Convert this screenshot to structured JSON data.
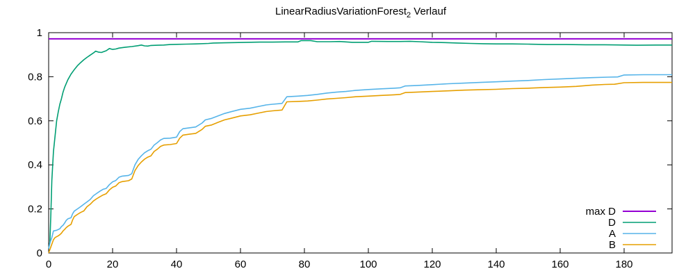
{
  "page": {
    "background": "#ffffff"
  },
  "title": {
    "main": "LinearRadiusVariationForest",
    "sub": "2",
    "suffix": " Verlauf",
    "full": "LinearRadiusVariationForest₂ Verlauf"
  },
  "chart_data": {
    "type": "line",
    "title": "LinearRadiusVariationForest₂ Verlauf",
    "xlabel": "",
    "ylabel": "",
    "xlim": [
      0,
      195
    ],
    "ylim": [
      0,
      1
    ],
    "grid": false,
    "legend_position": "bottom-right",
    "axis_color": "#000000",
    "text_color": "#000000",
    "xticks": {
      "values": [
        0,
        20,
        40,
        60,
        80,
        100,
        120,
        140,
        160,
        180
      ],
      "labels": [
        "0",
        "20",
        "40",
        "60",
        "80",
        "100",
        "120",
        "140",
        "160",
        "180"
      ]
    },
    "yticks": {
      "values": [
        0,
        0.2,
        0.4,
        0.6,
        0.8,
        1
      ],
      "labels": [
        "0",
        "0.2",
        "0.4",
        "0.6",
        "0.8",
        "1"
      ]
    },
    "series": [
      {
        "name": "max D",
        "color": "#9400d3",
        "stroke_width": 2,
        "points": [
          [
            0,
            0.972
          ],
          [
            195,
            0.972
          ]
        ]
      },
      {
        "name": "D",
        "color": "#009e73",
        "stroke_width": 1.6,
        "points": [
          [
            0,
            0.02
          ],
          [
            0.4,
            0.05
          ],
          [
            0.7,
            0.18
          ],
          [
            1,
            0.33
          ],
          [
            1.5,
            0.46
          ],
          [
            2,
            0.53
          ],
          [
            2.5,
            0.6
          ],
          [
            3,
            0.64
          ],
          [
            3.5,
            0.675
          ],
          [
            4,
            0.7
          ],
          [
            4.5,
            0.73
          ],
          [
            5,
            0.752
          ],
          [
            6,
            0.786
          ],
          [
            7,
            0.812
          ],
          [
            8,
            0.832
          ],
          [
            9,
            0.85
          ],
          [
            10,
            0.864
          ],
          [
            11,
            0.877
          ],
          [
            12,
            0.888
          ],
          [
            13,
            0.898
          ],
          [
            14,
            0.908
          ],
          [
            14.7,
            0.916
          ],
          [
            15.5,
            0.912
          ],
          [
            16.5,
            0.91
          ],
          [
            18,
            0.918
          ],
          [
            19,
            0.928
          ],
          [
            20,
            0.924
          ],
          [
            21,
            0.926
          ],
          [
            22,
            0.93
          ],
          [
            24,
            0.934
          ],
          [
            26,
            0.937
          ],
          [
            28,
            0.941
          ],
          [
            29,
            0.944
          ],
          [
            30,
            0.94
          ],
          [
            31,
            0.939
          ],
          [
            32,
            0.942
          ],
          [
            34,
            0.943
          ],
          [
            36,
            0.944
          ],
          [
            38,
            0.946
          ],
          [
            40,
            0.947
          ],
          [
            43,
            0.948
          ],
          [
            46,
            0.949
          ],
          [
            50,
            0.951
          ],
          [
            51.5,
            0.953
          ],
          [
            55,
            0.954
          ],
          [
            58,
            0.955
          ],
          [
            62,
            0.956
          ],
          [
            66,
            0.957
          ],
          [
            70,
            0.957
          ],
          [
            74,
            0.958
          ],
          [
            78,
            0.958
          ],
          [
            79,
            0.964
          ],
          [
            82,
            0.964
          ],
          [
            84,
            0.959
          ],
          [
            88,
            0.959
          ],
          [
            91,
            0.96
          ],
          [
            95,
            0.956
          ],
          [
            100,
            0.956
          ],
          [
            101,
            0.961
          ],
          [
            106,
            0.96
          ],
          [
            110,
            0.96
          ],
          [
            113,
            0.961
          ],
          [
            116,
            0.959
          ],
          [
            120,
            0.956
          ],
          [
            124,
            0.955
          ],
          [
            128,
            0.953
          ],
          [
            132,
            0.951
          ],
          [
            136,
            0.95
          ],
          [
            140,
            0.949
          ],
          [
            145,
            0.949
          ],
          [
            150,
            0.948
          ],
          [
            156,
            0.946
          ],
          [
            162,
            0.946
          ],
          [
            168,
            0.945
          ],
          [
            174,
            0.945
          ],
          [
            180,
            0.944
          ],
          [
            184,
            0.943
          ],
          [
            190,
            0.944
          ],
          [
            195,
            0.944
          ]
        ]
      },
      {
        "name": "A",
        "color": "#56b4e9",
        "stroke_width": 1.6,
        "points": [
          [
            0,
            0.02
          ],
          [
            0.5,
            0.05
          ],
          [
            1,
            0.07
          ],
          [
            1.5,
            0.1
          ],
          [
            2.5,
            0.103
          ],
          [
            3.5,
            0.11
          ],
          [
            4,
            0.12
          ],
          [
            4.5,
            0.126
          ],
          [
            5,
            0.136
          ],
          [
            5.5,
            0.148
          ],
          [
            6,
            0.155
          ],
          [
            7,
            0.16
          ],
          [
            7.5,
            0.178
          ],
          [
            8,
            0.19
          ],
          [
            9,
            0.2
          ],
          [
            10,
            0.21
          ],
          [
            11,
            0.221
          ],
          [
            12,
            0.232
          ],
          [
            13,
            0.243
          ],
          [
            14,
            0.26
          ],
          [
            15,
            0.27
          ],
          [
            16,
            0.28
          ],
          [
            17,
            0.289
          ],
          [
            18,
            0.293
          ],
          [
            19,
            0.31
          ],
          [
            20,
            0.323
          ],
          [
            21,
            0.329
          ],
          [
            22,
            0.344
          ],
          [
            23,
            0.349
          ],
          [
            25,
            0.352
          ],
          [
            26,
            0.36
          ],
          [
            27,
            0.4
          ],
          [
            28,
            0.425
          ],
          [
            29,
            0.441
          ],
          [
            30,
            0.455
          ],
          [
            31,
            0.464
          ],
          [
            32,
            0.471
          ],
          [
            33,
            0.49
          ],
          [
            34,
            0.501
          ],
          [
            35,
            0.513
          ],
          [
            36,
            0.52
          ],
          [
            38,
            0.521
          ],
          [
            40,
            0.526
          ],
          [
            41,
            0.551
          ],
          [
            42,
            0.564
          ],
          [
            44,
            0.568
          ],
          [
            46,
            0.572
          ],
          [
            48,
            0.59
          ],
          [
            49,
            0.604
          ],
          [
            51,
            0.611
          ],
          [
            53,
            0.622
          ],
          [
            55,
            0.633
          ],
          [
            57,
            0.641
          ],
          [
            60,
            0.652
          ],
          [
            63,
            0.657
          ],
          [
            66,
            0.666
          ],
          [
            68,
            0.672
          ],
          [
            70,
            0.675
          ],
          [
            73,
            0.679
          ],
          [
            74.5,
            0.709
          ],
          [
            78,
            0.712
          ],
          [
            81,
            0.715
          ],
          [
            84,
            0.72
          ],
          [
            87,
            0.726
          ],
          [
            90,
            0.73
          ],
          [
            93,
            0.733
          ],
          [
            96,
            0.738
          ],
          [
            100,
            0.742
          ],
          [
            104,
            0.745
          ],
          [
            108,
            0.748
          ],
          [
            110,
            0.75
          ],
          [
            111.5,
            0.758
          ],
          [
            115,
            0.76
          ],
          [
            120,
            0.764
          ],
          [
            125,
            0.768
          ],
          [
            130,
            0.771
          ],
          [
            135,
            0.774
          ],
          [
            140,
            0.777
          ],
          [
            145,
            0.78
          ],
          [
            150,
            0.783
          ],
          [
            155,
            0.787
          ],
          [
            160,
            0.79
          ],
          [
            165,
            0.793
          ],
          [
            170,
            0.796
          ],
          [
            175,
            0.798
          ],
          [
            178,
            0.799
          ],
          [
            180,
            0.808
          ],
          [
            186,
            0.809
          ],
          [
            190,
            0.809
          ],
          [
            195,
            0.809
          ]
        ]
      },
      {
        "name": "B",
        "color": "#e69f00",
        "stroke_width": 1.6,
        "points": [
          [
            0,
            0
          ],
          [
            0.5,
            0.02
          ],
          [
            1,
            0.04
          ],
          [
            1.5,
            0.06
          ],
          [
            2,
            0.07
          ],
          [
            3,
            0.078
          ],
          [
            3.5,
            0.083
          ],
          [
            4,
            0.09
          ],
          [
            4.5,
            0.1
          ],
          [
            5,
            0.107
          ],
          [
            5.5,
            0.115
          ],
          [
            6,
            0.121
          ],
          [
            7,
            0.13
          ],
          [
            7.5,
            0.15
          ],
          [
            8,
            0.165
          ],
          [
            9,
            0.175
          ],
          [
            10,
            0.184
          ],
          [
            11,
            0.191
          ],
          [
            12,
            0.21
          ],
          [
            13,
            0.221
          ],
          [
            14,
            0.236
          ],
          [
            15,
            0.246
          ],
          [
            16,
            0.255
          ],
          [
            17,
            0.263
          ],
          [
            18,
            0.269
          ],
          [
            19,
            0.286
          ],
          [
            20,
            0.298
          ],
          [
            21,
            0.304
          ],
          [
            22,
            0.319
          ],
          [
            23,
            0.324
          ],
          [
            25,
            0.328
          ],
          [
            26,
            0.336
          ],
          [
            27,
            0.374
          ],
          [
            28,
            0.397
          ],
          [
            29,
            0.413
          ],
          [
            30,
            0.426
          ],
          [
            31,
            0.435
          ],
          [
            32,
            0.441
          ],
          [
            33,
            0.461
          ],
          [
            34,
            0.471
          ],
          [
            35,
            0.484
          ],
          [
            36,
            0.49
          ],
          [
            38,
            0.492
          ],
          [
            40,
            0.497
          ],
          [
            41,
            0.521
          ],
          [
            42,
            0.535
          ],
          [
            44,
            0.539
          ],
          [
            46,
            0.543
          ],
          [
            48,
            0.561
          ],
          [
            49,
            0.575
          ],
          [
            51,
            0.581
          ],
          [
            53,
            0.593
          ],
          [
            55,
            0.604
          ],
          [
            57,
            0.611
          ],
          [
            60,
            0.622
          ],
          [
            63,
            0.627
          ],
          [
            66,
            0.636
          ],
          [
            68,
            0.642
          ],
          [
            70,
            0.645
          ],
          [
            73,
            0.649
          ],
          [
            74.5,
            0.686
          ],
          [
            78,
            0.688
          ],
          [
            81,
            0.69
          ],
          [
            84,
            0.694
          ],
          [
            87,
            0.699
          ],
          [
            90,
            0.702
          ],
          [
            93,
            0.705
          ],
          [
            96,
            0.709
          ],
          [
            100,
            0.712
          ],
          [
            104,
            0.715
          ],
          [
            108,
            0.718
          ],
          [
            110,
            0.72
          ],
          [
            111.5,
            0.728
          ],
          [
            115,
            0.73
          ],
          [
            120,
            0.733
          ],
          [
            125,
            0.736
          ],
          [
            130,
            0.739
          ],
          [
            135,
            0.741
          ],
          [
            140,
            0.743
          ],
          [
            145,
            0.746
          ],
          [
            150,
            0.748
          ],
          [
            155,
            0.751
          ],
          [
            160,
            0.753
          ],
          [
            165,
            0.756
          ],
          [
            170,
            0.762
          ],
          [
            174,
            0.765
          ],
          [
            177,
            0.766
          ],
          [
            180,
            0.773
          ],
          [
            186,
            0.774
          ],
          [
            190,
            0.774
          ],
          [
            195,
            0.774
          ]
        ]
      }
    ]
  }
}
